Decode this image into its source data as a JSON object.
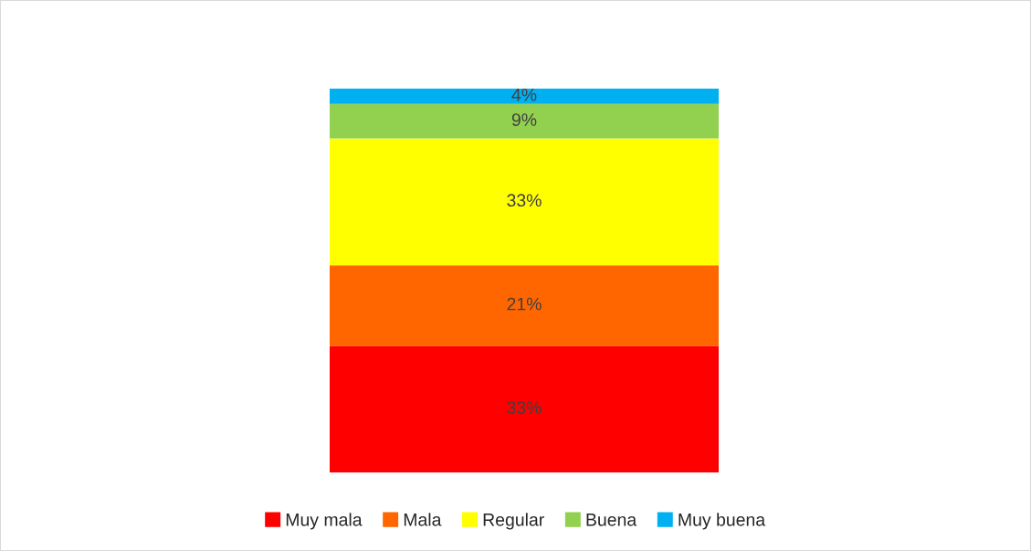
{
  "chart_data": {
    "type": "bar",
    "stacked": true,
    "categories": [
      null
    ],
    "legend": "bottom",
    "tick_labels": false,
    "series": [
      {
        "name": "Muy mala",
        "color": "#ff0000",
        "values": [
          33
        ],
        "value_labels": [
          "33%"
        ]
      },
      {
        "name": "Mala",
        "color": "#ff6600",
        "values": [
          21
        ],
        "value_labels": [
          "21%"
        ]
      },
      {
        "name": "Regular",
        "color": "#ffff00",
        "values": [
          33
        ],
        "value_labels": [
          "33%"
        ]
      },
      {
        "name": "Buena",
        "color": "#92d050",
        "values": [
          9
        ],
        "value_labels": [
          "9%"
        ]
      },
      {
        "name": "Muy buena",
        "color": "#00b0f0",
        "values": [
          4
        ],
        "value_labels": [
          "4%"
        ]
      }
    ]
  }
}
